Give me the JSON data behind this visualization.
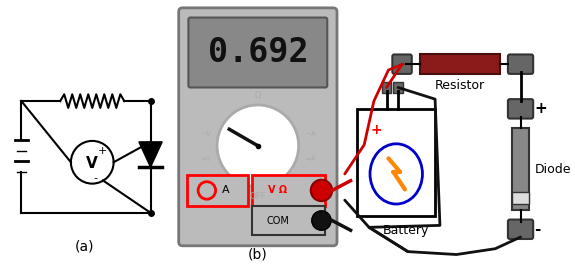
{
  "bg_color": "#ffffff",
  "label_a": "(a)",
  "label_b": "(b)",
  "resistor_label": "Resistor",
  "diode_label": "Diode",
  "battery_label": "Battery",
  "plus_label": "+",
  "minus_label": "-",
  "display_text": "0.692",
  "meter_body_color": "#bbbbbb",
  "meter_display_bg": "#888888",
  "meter_display_text_color": "#111111",
  "meter_ring_color": "#aaaaaa",
  "omega_label": "Ω",
  "acv_label": "~V",
  "aca_label": "~A",
  "dcv_label": "=V",
  "dca_label": "=A",
  "off_label": "OFF",
  "vomega_label": "V Ω",
  "com_label": "COM",
  "a_label": "A",
  "red_wire_color": "#cc0000",
  "black_wire_color": "#111111",
  "resistor_color": "#8b1a1a",
  "diode_body_color": "#888888",
  "diode_band_color": "#dddddd",
  "clip_color": "#666666",
  "battery_oval_color": "#0000cc",
  "bolt_color": "#ff8800"
}
